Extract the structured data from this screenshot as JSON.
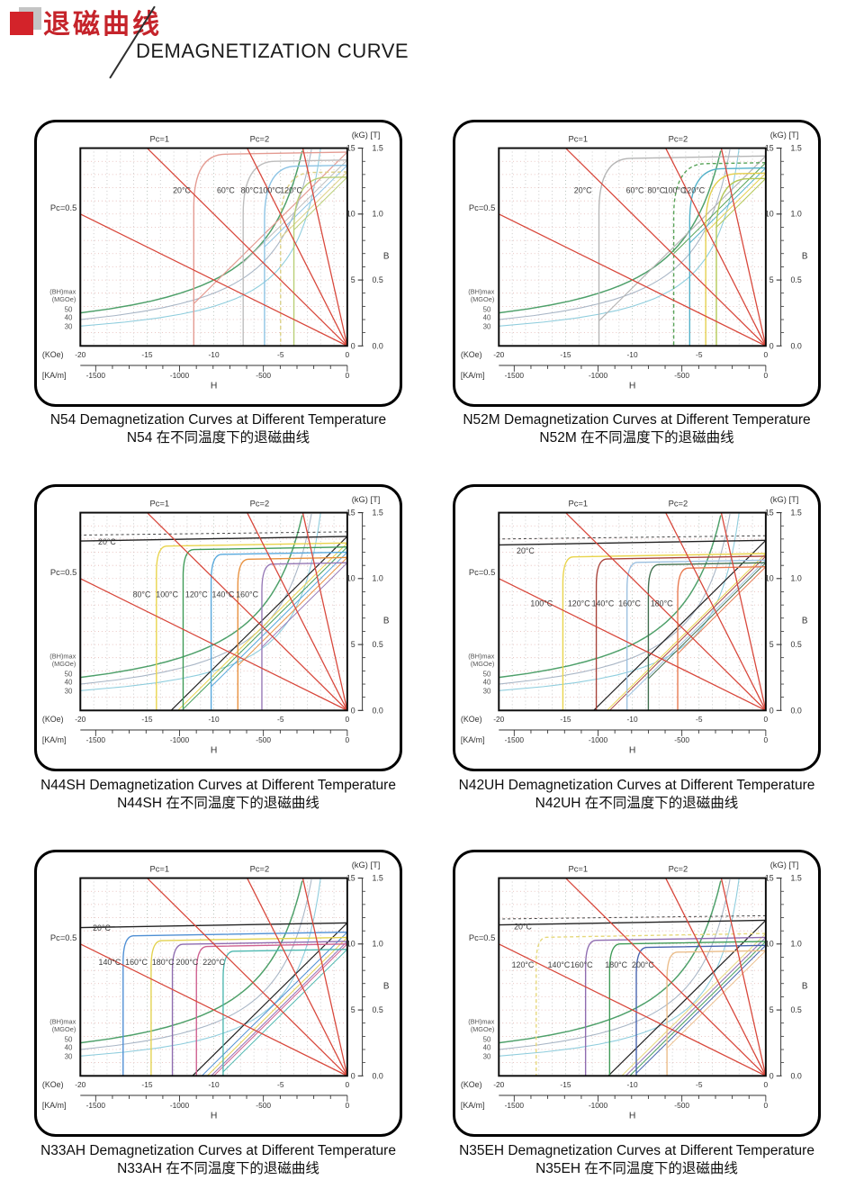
{
  "header": {
    "title_cn": "退磁曲线",
    "title_en": "DEMAGNETIZATION CURVE"
  },
  "colors": {
    "accent_red": "#c5242b",
    "load_line_red": "#d8473b",
    "grid_h_pink": "#e3b3af",
    "grid_v_gray": "#bcbcbc",
    "grid_v_major": "#a3b2a8",
    "hyperbola_50": "#4ea06a",
    "hyperbola_40": "#a9b6c6",
    "hyperbola_30": "#8ecddd"
  },
  "axes": {
    "unit_top": "(kG) [T]",
    "y_title": "B",
    "x_title": "H",
    "y_kg_ticks": [
      0,
      5,
      10,
      15
    ],
    "y_t_ticks": [
      "0.0",
      "0.5",
      "1.0",
      "1.5"
    ],
    "x_koe_label": "(KOe)",
    "x_koe_ticks": [
      -20,
      -15,
      -10,
      -5,
      0
    ],
    "x_kam_label": "[KA/m]",
    "x_kam_ticks": [
      -1500,
      -1000,
      -500,
      0
    ],
    "bhmax_label_1": "(BH)max",
    "bhmax_label_2": "(MGOe)",
    "bhmax_values": [
      50,
      40,
      30
    ],
    "pc_labels": {
      "pc05": "Pc=0.5",
      "pc1": "Pc=1",
      "pc2": "Pc=2"
    }
  },
  "chart_data": [
    {
      "type": "line",
      "grade": "N54",
      "caption_en": "N54 Demagnetization Curves at Different Temperature",
      "caption_cn": "N54 在不同温度下的退磁曲线",
      "x_range_koe": [
        -20,
        0
      ],
      "y_range_kg": [
        0,
        15
      ],
      "load_lines_pc": [
        0.5,
        1,
        2,
        4.5
      ],
      "bhmax_mgoe": [
        50,
        40,
        30
      ],
      "soft_knee": true,
      "j2_dashed": false,
      "series": [
        {
          "label": "20°C",
          "color": "#e49b92",
          "br_kg": 14.7,
          "hcj_koe": -11.5,
          "label_pos": [
            -12.4,
            11.6
          ],
          "dashed": false
        },
        {
          "label": "60°C",
          "color": "#bdbdbd",
          "br_kg": 14.1,
          "hcj_koe": -7.8,
          "label_pos": [
            -9.1,
            11.6
          ],
          "dashed": false
        },
        {
          "label": "80°C",
          "color": "#8cc3e4",
          "br_kg": 13.7,
          "hcj_koe": -6.2,
          "label_pos": [
            -7.3,
            11.6
          ],
          "dashed": false
        },
        {
          "label": "100°C",
          "color": "#dcd083",
          "br_kg": 13.2,
          "hcj_koe": -5.0,
          "label_pos": [
            -5.8,
            11.6
          ],
          "dashed": true
        },
        {
          "label": "120°C",
          "color": "#b9cf76",
          "br_kg": 12.8,
          "hcj_koe": -4.0,
          "label_pos": [
            -4.2,
            11.6
          ],
          "dashed": false
        }
      ]
    },
    {
      "type": "line",
      "grade": "N52M",
      "caption_en": "N52M Demagnetization Curves at Different Temperature",
      "caption_cn": "N52M 在不同温度下的退磁曲线",
      "x_range_koe": [
        -20,
        0
      ],
      "y_range_kg": [
        0,
        15
      ],
      "load_lines_pc": [
        0.5,
        1,
        2,
        4.5
      ],
      "bhmax_mgoe": [
        50,
        40,
        30
      ],
      "soft_knee": true,
      "j2_dashed": false,
      "series": [
        {
          "label": "20°C",
          "color": "#b5b5b5",
          "br_kg": 14.4,
          "hcj_koe": -12.5,
          "label_pos": [
            -13.7,
            11.6
          ],
          "dashed": false
        },
        {
          "label": "60°C",
          "color": "#57a257",
          "br_kg": 13.9,
          "hcj_koe": -6.9,
          "label_pos": [
            -9.8,
            11.6
          ],
          "dashed": true
        },
        {
          "label": "80°C",
          "color": "#53b1c9",
          "br_kg": 13.5,
          "hcj_koe": -5.7,
          "label_pos": [
            -8.2,
            11.6
          ],
          "dashed": false
        },
        {
          "label": "100°C",
          "color": "#e4d04e",
          "br_kg": 13.1,
          "hcj_koe": -4.5,
          "label_pos": [
            -6.8,
            11.6
          ],
          "dashed": false
        },
        {
          "label": "120°C",
          "color": "#b3c855",
          "br_kg": 12.7,
          "hcj_koe": -3.7,
          "label_pos": [
            -5.4,
            11.6
          ],
          "dashed": false
        }
      ]
    },
    {
      "type": "line",
      "grade": "N44SH",
      "caption_en": "N44SH Demagnetization Curves at Different Temperature",
      "caption_cn": "N44SH 在不同温度下的退磁曲线",
      "x_range_koe": [
        -20,
        0
      ],
      "y_range_kg": [
        0,
        15
      ],
      "load_lines_pc": [
        0.5,
        1,
        2,
        4.5
      ],
      "bhmax_mgoe": [
        50,
        40,
        30
      ],
      "soft_knee": false,
      "j2_dashed": true,
      "series": [
        {
          "label": "20°C",
          "color": "#222222",
          "br_kg": 13.2,
          "hcj_koe": -99,
          "label_pos": [
            -18.0,
            12.6
          ],
          "dashed": false
        },
        {
          "label": "80°C",
          "color": "#e9d44b",
          "br_kg": 12.7,
          "hcj_koe": -14.3,
          "label_pos": [
            -15.4,
            8.6
          ],
          "dashed": false
        },
        {
          "label": "100°C",
          "color": "#3f9b57",
          "br_kg": 12.4,
          "hcj_koe": -12.3,
          "label_pos": [
            -13.5,
            8.6
          ],
          "dashed": false
        },
        {
          "label": "120°C",
          "color": "#58a9dd",
          "br_kg": 12.0,
          "hcj_koe": -10.2,
          "label_pos": [
            -11.3,
            8.6
          ],
          "dashed": false
        },
        {
          "label": "140°C",
          "color": "#e8913f",
          "br_kg": 11.6,
          "hcj_koe": -8.2,
          "label_pos": [
            -9.3,
            8.6
          ],
          "dashed": false
        },
        {
          "label": "160°C",
          "color": "#9678b6",
          "br_kg": 11.2,
          "hcj_koe": -6.4,
          "label_pos": [
            -7.5,
            8.6
          ],
          "dashed": false
        }
      ]
    },
    {
      "type": "line",
      "grade": "N42UH",
      "caption_en": "N42UH Demagnetization Curves at Different Temperature",
      "caption_cn": "N42UH 在不同温度下的退磁曲线",
      "x_range_koe": [
        -20,
        0
      ],
      "y_range_kg": [
        0,
        15
      ],
      "load_lines_pc": [
        0.5,
        1,
        2,
        4.5
      ],
      "bhmax_mgoe": [
        50,
        40,
        30
      ],
      "soft_knee": false,
      "j2_dashed": true,
      "series": [
        {
          "label": "20°C",
          "color": "#222222",
          "br_kg": 12.9,
          "hcj_koe": -99,
          "label_pos": [
            -18.0,
            11.9
          ],
          "dashed": false
        },
        {
          "label": "100°C",
          "color": "#e9d44b",
          "br_kg": 11.9,
          "hcj_koe": -15.2,
          "label_pos": [
            -16.8,
            7.9
          ],
          "dashed": false
        },
        {
          "label": "120°C",
          "color": "#a8433a",
          "br_kg": 11.7,
          "hcj_koe": -12.7,
          "label_pos": [
            -14.0,
            7.9
          ],
          "dashed": false
        },
        {
          "label": "140°C",
          "color": "#9cc0e0",
          "br_kg": 11.4,
          "hcj_koe": -10.4,
          "label_pos": [
            -12.2,
            7.9
          ],
          "dashed": false
        },
        {
          "label": "160°C",
          "color": "#41704f",
          "br_kg": 11.2,
          "hcj_koe": -8.8,
          "label_pos": [
            -10.2,
            7.9
          ],
          "dashed": false
        },
        {
          "label": "180°C",
          "color": "#e87a50",
          "br_kg": 10.9,
          "hcj_koe": -6.6,
          "label_pos": [
            -7.8,
            7.9
          ],
          "dashed": false
        }
      ]
    },
    {
      "type": "line",
      "grade": "N33AH",
      "caption_en": "N33AH Demagnetization Curves at Different Temperature",
      "caption_cn": "N33AH 在不同温度下的退磁曲线",
      "x_range_koe": [
        -20,
        0
      ],
      "y_range_kg": [
        0,
        15
      ],
      "load_lines_pc": [
        0.5,
        1,
        2,
        4.5
      ],
      "bhmax_mgoe": [
        50,
        40,
        30
      ],
      "soft_knee": false,
      "j2_dashed": false,
      "series": [
        {
          "label": "20°C",
          "color": "#222222",
          "br_kg": 11.6,
          "hcj_koe": -99,
          "label_pos": [
            -18.4,
            11.0
          ],
          "dashed": false
        },
        {
          "label": "140°C",
          "color": "#4f8fd4",
          "br_kg": 10.9,
          "hcj_koe": -16.8,
          "label_pos": [
            -17.8,
            8.4
          ],
          "dashed": false
        },
        {
          "label": "160°C",
          "color": "#e3d24f",
          "br_kg": 10.5,
          "hcj_koe": -14.7,
          "label_pos": [
            -15.8,
            8.4
          ],
          "dashed": false
        },
        {
          "label": "180°C",
          "color": "#8f6cb0",
          "br_kg": 10.2,
          "hcj_koe": -13.1,
          "label_pos": [
            -13.8,
            8.4
          ],
          "dashed": false
        },
        {
          "label": "200°C",
          "color": "#cf6090",
          "br_kg": 10.0,
          "hcj_koe": -11.3,
          "label_pos": [
            -12.0,
            8.4
          ],
          "dashed": false
        },
        {
          "label": "220°C",
          "color": "#4fb8b0",
          "br_kg": 9.6,
          "hcj_koe": -9.3,
          "label_pos": [
            -10.0,
            8.4
          ],
          "dashed": false
        }
      ]
    },
    {
      "type": "line",
      "grade": "N35EH",
      "caption_en": "N35EH Demagnetization Curves at Different Temperature",
      "caption_cn": "N35EH 在不同温度下的退磁曲线",
      "x_range_koe": [
        -20,
        0
      ],
      "y_range_kg": [
        0,
        15
      ],
      "load_lines_pc": [
        0.5,
        1,
        2,
        4.5
      ],
      "bhmax_mgoe": [
        50,
        40,
        30
      ],
      "soft_knee": false,
      "j2_dashed": true,
      "series": [
        {
          "label": "20°C",
          "color": "#222222",
          "br_kg": 11.8,
          "hcj_koe": -99,
          "label_pos": [
            -18.2,
            11.1
          ],
          "dashed": false
        },
        {
          "label": "120°C",
          "color": "#e6d87a",
          "br_kg": 10.8,
          "hcj_koe": -17.2,
          "label_pos": [
            -18.2,
            8.2
          ],
          "dashed": true
        },
        {
          "label": "140°C",
          "color": "#8f6cb0",
          "br_kg": 10.5,
          "hcj_koe": -13.5,
          "label_pos": [
            -15.5,
            8.2
          ],
          "dashed": false
        },
        {
          "label": "160°C",
          "color": "#3f9b57",
          "br_kg": 10.2,
          "hcj_koe": -11.7,
          "label_pos": [
            -13.8,
            8.2
          ],
          "dashed": false
        },
        {
          "label": "180°C",
          "color": "#4663ae",
          "br_kg": 9.9,
          "hcj_koe": -9.7,
          "label_pos": [
            -11.2,
            8.2
          ],
          "dashed": false
        },
        {
          "label": "200°C",
          "color": "#ebbd8a",
          "br_kg": 9.5,
          "hcj_koe": -7.4,
          "label_pos": [
            -9.2,
            8.2
          ],
          "dashed": false
        }
      ]
    }
  ]
}
